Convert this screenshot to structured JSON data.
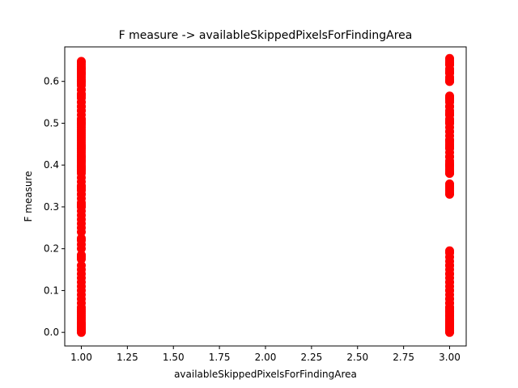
{
  "chart_data": {
    "type": "scatter",
    "title": "F measure -> availableSkippedPixelsForFindingArea",
    "xlabel": "availableSkippedPixelsForFindingArea",
    "ylabel": "F measure",
    "xlim": [
      0.91,
      3.09
    ],
    "ylim": [
      -0.0325,
      0.6825
    ],
    "xticks": [
      "1.00",
      "1.25",
      "1.50",
      "1.75",
      "2.00",
      "2.25",
      "2.50",
      "2.75",
      "3.00"
    ],
    "yticks": [
      "0.0",
      "0.1",
      "0.2",
      "0.3",
      "0.4",
      "0.5",
      "0.6"
    ],
    "grid": false,
    "color": "#ff0000",
    "series": [
      {
        "x": [
          1,
          1,
          1,
          1,
          1,
          1,
          1,
          1,
          1,
          1,
          1,
          1,
          1,
          1,
          1,
          1,
          1,
          1,
          1,
          1,
          1,
          1,
          1,
          1,
          1,
          1,
          1,
          1,
          1,
          1,
          1,
          1,
          1,
          1,
          1,
          1,
          1,
          1,
          1,
          1,
          1,
          1,
          1,
          1,
          1,
          1,
          1,
          1,
          1,
          1,
          1,
          1,
          1,
          1,
          1,
          1,
          1,
          1,
          1,
          1,
          1,
          1,
          1,
          1,
          1,
          1,
          1,
          1,
          1,
          1,
          1,
          1,
          1,
          1,
          1,
          1,
          1,
          1,
          1,
          1,
          1,
          1,
          1,
          1,
          1,
          1,
          1,
          1,
          1,
          1,
          1,
          1,
          1,
          1,
          1,
          1,
          1,
          1,
          1,
          1,
          1,
          1,
          1,
          1,
          1,
          1,
          1,
          1,
          1,
          1,
          1,
          1,
          1,
          1,
          1,
          1,
          1,
          1,
          1,
          1,
          1,
          3,
          3,
          3,
          3,
          3,
          3,
          3,
          3,
          3,
          3,
          3,
          3,
          3,
          3,
          3,
          3,
          3,
          3,
          3,
          3,
          3,
          3,
          3,
          3,
          3,
          3,
          3,
          3,
          3,
          3,
          3,
          3,
          3,
          3,
          3,
          3,
          3,
          3,
          3,
          3,
          3,
          3,
          3,
          3,
          3,
          3,
          3,
          3,
          3,
          3,
          3,
          3,
          3,
          3,
          3,
          3,
          3,
          3,
          3,
          3,
          3,
          3,
          3,
          3,
          3,
          3,
          3,
          3,
          3,
          3,
          3,
          3,
          3,
          3,
          3,
          3,
          3,
          3,
          3,
          3,
          3,
          3,
          3,
          3,
          3,
          3,
          3,
          3,
          3,
          3,
          3,
          3,
          3,
          3,
          3,
          3,
          3,
          3,
          3,
          3,
          3,
          3
        ],
        "y": [
          0.0,
          0.003,
          0.006,
          0.009,
          0.012,
          0.015,
          0.018,
          0.021,
          0.025,
          0.03,
          0.035,
          0.04,
          0.045,
          0.05,
          0.055,
          0.06,
          0.07,
          0.08,
          0.09,
          0.1,
          0.11,
          0.12,
          0.13,
          0.14,
          0.15,
          0.16,
          0.175,
          0.18,
          0.185,
          0.2,
          0.21,
          0.22,
          0.225,
          0.24,
          0.25,
          0.26,
          0.27,
          0.28,
          0.29,
          0.3,
          0.31,
          0.32,
          0.33,
          0.34,
          0.345,
          0.35,
          0.36,
          0.37,
          0.38,
          0.385,
          0.39,
          0.395,
          0.4,
          0.405,
          0.41,
          0.415,
          0.42,
          0.425,
          0.43,
          0.435,
          0.44,
          0.445,
          0.45,
          0.455,
          0.46,
          0.465,
          0.47,
          0.475,
          0.48,
          0.485,
          0.49,
          0.495,
          0.5,
          0.505,
          0.51,
          0.52,
          0.53,
          0.54,
          0.55,
          0.56,
          0.565,
          0.57,
          0.58,
          0.59,
          0.595,
          0.6,
          0.605,
          0.61,
          0.615,
          0.62,
          0.625,
          0.63,
          0.635,
          0.64,
          0.645,
          0.648,
          0.0,
          0.005,
          0.01,
          0.02,
          0.3,
          0.305,
          0.33,
          0.34,
          0.35,
          0.44,
          0.445,
          0.39,
          0.395,
          0.41,
          0.42,
          0.5,
          0.51,
          0.53,
          0.54,
          0.55,
          0.57,
          0.58,
          0.6,
          0.62,
          0.63,
          0.0,
          0.003,
          0.006,
          0.009,
          0.012,
          0.015,
          0.02,
          0.025,
          0.03,
          0.035,
          0.04,
          0.045,
          0.05,
          0.055,
          0.06,
          0.07,
          0.08,
          0.09,
          0.1,
          0.11,
          0.12,
          0.13,
          0.14,
          0.15,
          0.16,
          0.17,
          0.18,
          0.19,
          0.195,
          0.33,
          0.335,
          0.34,
          0.345,
          0.35,
          0.355,
          0.38,
          0.385,
          0.39,
          0.395,
          0.4,
          0.405,
          0.41,
          0.42,
          0.43,
          0.44,
          0.445,
          0.45,
          0.455,
          0.46,
          0.47,
          0.48,
          0.49,
          0.5,
          0.505,
          0.51,
          0.52,
          0.525,
          0.53,
          0.54,
          0.55,
          0.555,
          0.56,
          0.565,
          0.6,
          0.605,
          0.61,
          0.62,
          0.625,
          0.63,
          0.64,
          0.645,
          0.65,
          0.655,
          0.0,
          0.005,
          0.01,
          0.015,
          0.02,
          0.025,
          0.03,
          0.04,
          0.05,
          0.06,
          0.07,
          0.08,
          0.1,
          0.12,
          0.14,
          0.16,
          0.38,
          0.4,
          0.42,
          0.44,
          0.46,
          0.48,
          0.5,
          0.52,
          0.54,
          0.56,
          0.6,
          0.62,
          0.64
        ]
      }
    ]
  }
}
